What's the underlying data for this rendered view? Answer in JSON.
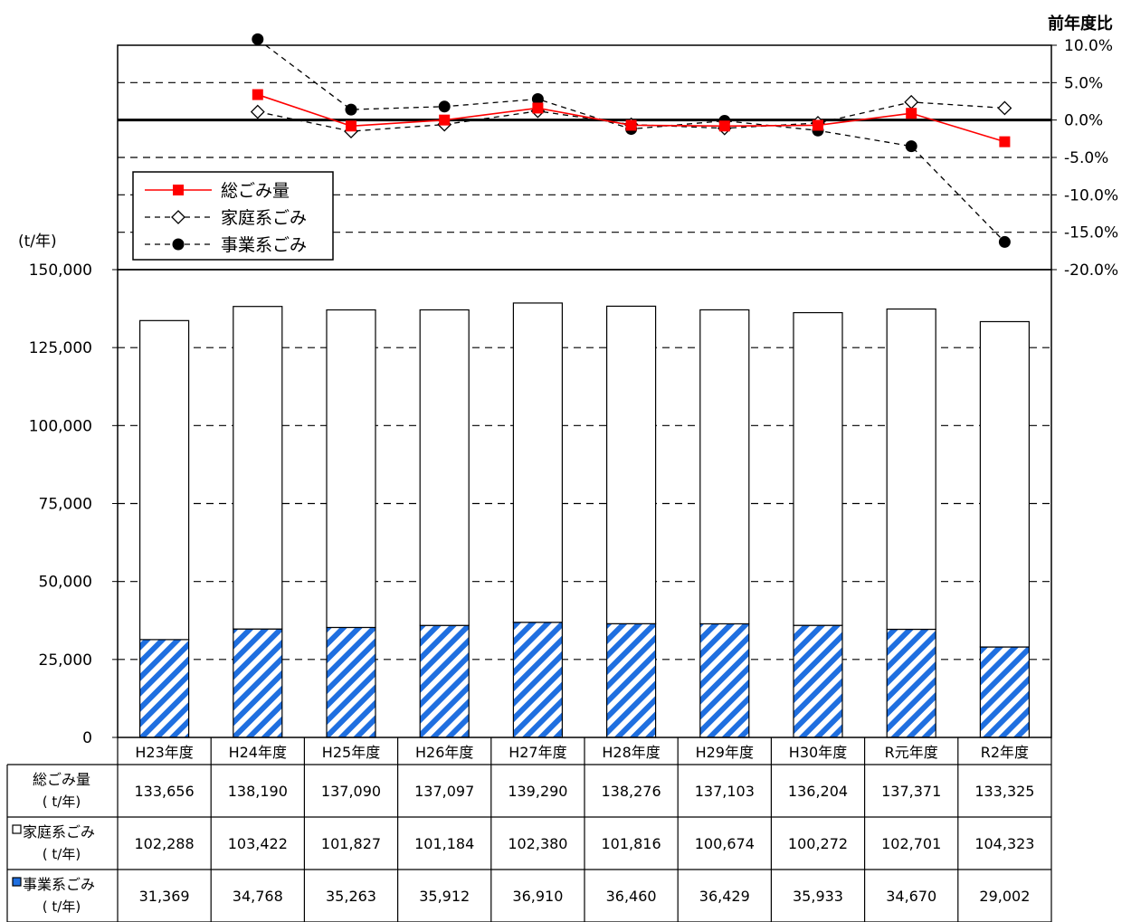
{
  "chart_data": {
    "type": "bar",
    "categories": [
      "H23年度",
      "H24年度",
      "H25年度",
      "H26年度",
      "H27年度",
      "H28年度",
      "H29年度",
      "H30年度",
      "R元年度",
      "R2年度"
    ],
    "bar_chart": {
      "y_unit_label": "(t/年)",
      "ylim": [
        0,
        150000
      ],
      "yticks": [
        "0",
        "25,000",
        "50,000",
        "75,000",
        "100,000",
        "125,000",
        "150,000"
      ],
      "ytick_values": [
        0,
        25000,
        50000,
        75000,
        100000,
        125000,
        150000
      ],
      "stacked": true,
      "series": [
        {
          "name": "事業系ごみ",
          "values": [
            31369,
            34768,
            35263,
            35912,
            36910,
            36460,
            36429,
            35933,
            34670,
            29002
          ],
          "color": "#1f6fe0",
          "pattern": "diagonal-stripes"
        },
        {
          "name": "家庭系ごみ",
          "values": [
            102288,
            103422,
            101827,
            101184,
            102380,
            101816,
            100674,
            100272,
            102701,
            104323
          ],
          "color": "#ffffff"
        }
      ],
      "grid": "dashed"
    },
    "line_chart": {
      "axis_title": "前年度比",
      "ylim": [
        -20,
        10
      ],
      "yticks": [
        "10.0%",
        "5.0%",
        "0.0%",
        "-5.0%",
        "-10.0%",
        "-15.0%",
        "-20.0%"
      ],
      "ytick_values": [
        10,
        5,
        0,
        -5,
        -10,
        -15,
        -20
      ],
      "series": [
        {
          "name": "総ごみ量",
          "values": [
            null,
            3.4,
            -0.8,
            0.0,
            1.6,
            -0.7,
            -0.8,
            -0.7,
            0.9,
            -2.9
          ],
          "color": "#ff0000",
          "marker": "square",
          "style": "solid"
        },
        {
          "name": "家庭系ごみ",
          "values": [
            null,
            1.1,
            -1.5,
            -0.6,
            1.2,
            -0.6,
            -1.1,
            -0.4,
            2.4,
            1.6
          ],
          "color": "#000000",
          "marker": "diamond-open",
          "style": "dashed"
        },
        {
          "name": "事業系ごみ",
          "values": [
            null,
            10.8,
            1.4,
            1.8,
            2.8,
            -1.2,
            -0.1,
            -1.4,
            -3.5,
            -16.3
          ],
          "color": "#000000",
          "marker": "circle-filled",
          "style": "dashed"
        }
      ],
      "legend_position": "left"
    },
    "table": {
      "rows": [
        {
          "label_line1": "総ごみ量",
          "label_line2": "( t/年)",
          "swatch": "none",
          "values": [
            "133,656",
            "138,190",
            "137,090",
            "137,097",
            "139,290",
            "138,276",
            "137,103",
            "136,204",
            "137,371",
            "133,325"
          ]
        },
        {
          "label_line1": "家庭系ごみ",
          "label_line2": "( t/年)",
          "swatch": "white",
          "values": [
            "102,288",
            "103,422",
            "101,827",
            "101,184",
            "102,380",
            "101,816",
            "100,674",
            "100,272",
            "102,701",
            "104,323"
          ]
        },
        {
          "label_line1": "事業系ごみ",
          "label_line2": "( t/年)",
          "swatch": "blue",
          "values": [
            "31,369",
            "34,768",
            "35,263",
            "35,912",
            "36,910",
            "36,460",
            "36,429",
            "35,933",
            "34,670",
            "29,002"
          ]
        }
      ]
    }
  }
}
